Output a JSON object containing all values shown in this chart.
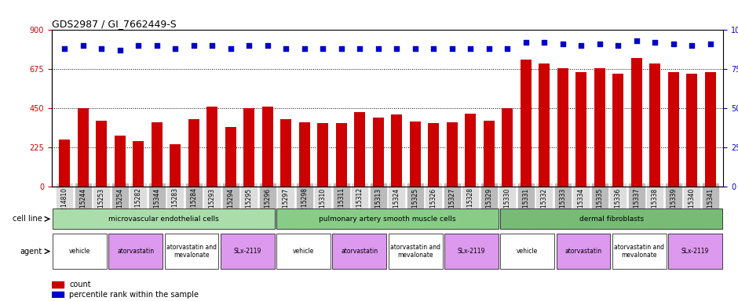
{
  "title": "GDS2987 / GI_7662449-S",
  "samples": [
    "GSM214810",
    "GSM215244",
    "GSM215253",
    "GSM215254",
    "GSM215282",
    "GSM215344",
    "GSM215283",
    "GSM215284",
    "GSM215293",
    "GSM215294",
    "GSM215295",
    "GSM215296",
    "GSM215297",
    "GSM215298",
    "GSM215310",
    "GSM215311",
    "GSM215312",
    "GSM215313",
    "GSM215324",
    "GSM215325",
    "GSM215326",
    "GSM215327",
    "GSM215328",
    "GSM215329",
    "GSM215330",
    "GSM215331",
    "GSM215332",
    "GSM215333",
    "GSM215334",
    "GSM215335",
    "GSM215336",
    "GSM215337",
    "GSM215338",
    "GSM215339",
    "GSM215340",
    "GSM215341"
  ],
  "counts": [
    270,
    450,
    380,
    295,
    260,
    370,
    245,
    390,
    460,
    345,
    450,
    460,
    390,
    370,
    365,
    365,
    430,
    395,
    415,
    375,
    365,
    370,
    420,
    380,
    450,
    730,
    710,
    680,
    660,
    680,
    650,
    740,
    710,
    660,
    650,
    660
  ],
  "percentiles": [
    88,
    90,
    88,
    87,
    90,
    90,
    88,
    90,
    90,
    88,
    90,
    90,
    88,
    88,
    88,
    88,
    88,
    88,
    88,
    88,
    88,
    88,
    88,
    88,
    88,
    92,
    92,
    91,
    90,
    91,
    90,
    93,
    92,
    91,
    90,
    91
  ],
  "bar_color": "#cc0000",
  "dot_color": "#0000cc",
  "ylim_left": [
    0,
    900
  ],
  "ylim_right": [
    0,
    100
  ],
  "yticks_left": [
    0,
    225,
    450,
    675,
    900
  ],
  "yticks_right": [
    0,
    25,
    50,
    75,
    100
  ],
  "cell_line_groups": [
    {
      "label": "microvascular endothelial cells",
      "start": 0,
      "end": 12,
      "color": "#90ee90"
    },
    {
      "label": "pulmonary artery smooth muscle cells",
      "start": 12,
      "end": 24,
      "color": "#90ee90"
    },
    {
      "label": "dermal fibroblasts",
      "start": 24,
      "end": 36,
      "color": "#90cc90"
    }
  ],
  "agent_groups": [
    {
      "label": "vehicle",
      "start": 0,
      "end": 3,
      "color": "#ffffff"
    },
    {
      "label": "atorvastatin",
      "start": 3,
      "end": 6,
      "color": "#dd88dd"
    },
    {
      "label": "atorvastatin and\nmevalonate",
      "start": 6,
      "end": 9,
      "color": "#ffffff"
    },
    {
      "label": "SLx-2119",
      "start": 9,
      "end": 12,
      "color": "#dd88dd"
    },
    {
      "label": "vehicle",
      "start": 12,
      "end": 15,
      "color": "#ffffff"
    },
    {
      "label": "atorvastatin",
      "start": 15,
      "end": 18,
      "color": "#dd88dd"
    },
    {
      "label": "atorvastatin and\nmevalonate",
      "start": 18,
      "end": 21,
      "color": "#ffffff"
    },
    {
      "label": "SLx-2119",
      "start": 21,
      "end": 24,
      "color": "#dd88dd"
    },
    {
      "label": "vehicle",
      "start": 24,
      "end": 27,
      "color": "#ffffff"
    },
    {
      "label": "atorvastatin",
      "start": 27,
      "end": 30,
      "color": "#dd88dd"
    },
    {
      "label": "atorvastatin and\nmevalonate",
      "start": 30,
      "end": 33,
      "color": "#ffffff"
    },
    {
      "label": "SLx-2119",
      "start": 33,
      "end": 36,
      "color": "#dd88dd"
    }
  ],
  "legend_count_label": "count",
  "legend_pct_label": "percentile rank within the sample"
}
